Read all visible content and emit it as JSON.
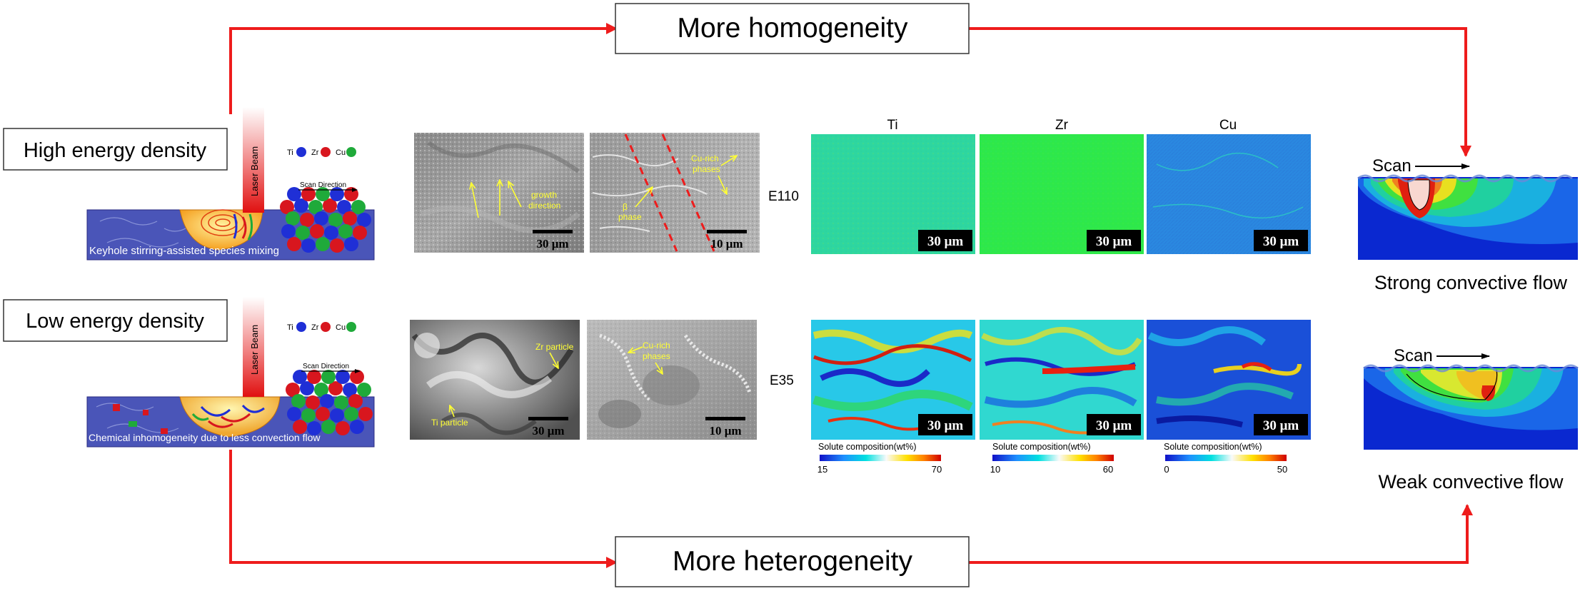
{
  "top_box": "More homogeneity",
  "bottom_box": "More heterogeneity",
  "high_label": "High energy density",
  "low_label": "Low energy density",
  "laser": "Laser Beam",
  "legend": {
    "ti": "Ti",
    "zr": "Zr",
    "cu": "Cu"
  },
  "scan_direction": "Scan Direction",
  "high_caption": "Keyhole stirring-assisted species mixing",
  "low_caption": "Chemical inhomogeneity due to less convection flow",
  "e110": "E110",
  "e35": "E35",
  "sem_top_left": {
    "scale": "30 μm",
    "note1": "growth",
    "note2": "direction"
  },
  "sem_top_right": {
    "scale": "10 μm",
    "note1": "Cu-rich",
    "note2": "phases",
    "note3": "β",
    "note4": "phase"
  },
  "sem_bot_left": {
    "scale": "30 μm",
    "note1": "Zr particle",
    "note2": "Ti particle"
  },
  "sem_bot_right": {
    "scale": "10 μm",
    "note1": "Cu-rich",
    "note2": "phases"
  },
  "map_headers": {
    "ti": "Ti",
    "zr": "Zr",
    "cu": "Cu"
  },
  "map_scale": "30 μm",
  "colorbar_title": "Solute composition(wt%)",
  "colorbars": {
    "ti": {
      "min": "15",
      "max": "70"
    },
    "zr": {
      "min": "10",
      "max": "60"
    },
    "cu": {
      "min": "0",
      "max": "50"
    }
  },
  "scan_word": "Scan",
  "strong_flow": "Strong convective flow",
  "weak_flow": "Weak convective flow",
  "colors": {
    "arrow": "#ee1c1c",
    "ti": "#1f2fd6",
    "zr": "#d8161e",
    "cu": "#1faa3a",
    "annot": "#ffff33"
  }
}
